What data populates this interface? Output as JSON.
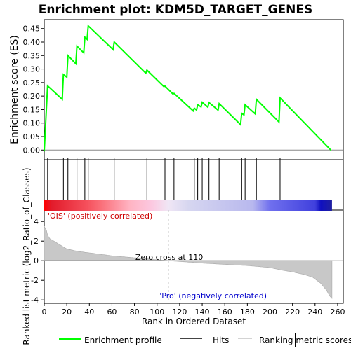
{
  "chart_data": {
    "type": "line",
    "title": "Enrichment plot: KDM5D_TARGET_GENES",
    "top_panel": {
      "ylabel": "Enrichment score (ES)",
      "ylim": [
        -0.02,
        0.47
      ],
      "yticks": [
        0.0,
        0.05,
        0.1,
        0.15,
        0.2,
        0.25,
        0.3,
        0.35,
        0.4,
        0.45
      ],
      "ytick_labels": [
        "0.00",
        "0.05",
        "0.10",
        "0.15",
        "0.20",
        "0.25",
        "0.30",
        "0.35",
        "0.40",
        "0.45"
      ],
      "color": "#00ff00",
      "es_profile": [
        [
          0,
          -0.005
        ],
        [
          3,
          0.238
        ],
        [
          16,
          0.188
        ],
        [
          17,
          0.28
        ],
        [
          20,
          0.27
        ],
        [
          21,
          0.35
        ],
        [
          28,
          0.32
        ],
        [
          29,
          0.385
        ],
        [
          35,
          0.36
        ],
        [
          36,
          0.418
        ],
        [
          38,
          0.41
        ],
        [
          39,
          0.46
        ],
        [
          61,
          0.372
        ],
        [
          62,
          0.4
        ],
        [
          90,
          0.285
        ],
        [
          91,
          0.296
        ],
        [
          106,
          0.235
        ],
        [
          107,
          0.237
        ],
        [
          114,
          0.208
        ],
        [
          115,
          0.21
        ],
        [
          132,
          0.145
        ],
        [
          133,
          0.155
        ],
        [
          135,
          0.148
        ],
        [
          136,
          0.168
        ],
        [
          139,
          0.16
        ],
        [
          140,
          0.177
        ],
        [
          145,
          0.159
        ],
        [
          146,
          0.176
        ],
        [
          154,
          0.148
        ],
        [
          155,
          0.172
        ],
        [
          174,
          0.094
        ],
        [
          175,
          0.136
        ],
        [
          177,
          0.13
        ],
        [
          178,
          0.168
        ],
        [
          187,
          0.134
        ],
        [
          188,
          0.188
        ],
        [
          208,
          0.104
        ],
        [
          209,
          0.193
        ],
        [
          254,
          0.0
        ]
      ]
    },
    "hits_panel": {
      "hit_ranks": [
        3,
        17,
        21,
        29,
        36,
        39,
        62,
        91,
        107,
        115,
        133,
        136,
        140,
        146,
        155,
        175,
        178,
        188,
        209
      ]
    },
    "color_bar": {
      "range": [
        0,
        255
      ],
      "stops": [
        [
          0,
          "#ff0000"
        ],
        [
          6,
          "#e21a2a"
        ],
        [
          38,
          "#f5505c"
        ],
        [
          50,
          "#fa6e78"
        ],
        [
          76,
          "#ffb4c3"
        ],
        [
          95,
          "#fcc8e0"
        ],
        [
          110,
          "#f0e6f5"
        ],
        [
          128,
          "#d6d6f0"
        ],
        [
          185,
          "#b8b8ee"
        ],
        [
          200,
          "#7070ee"
        ],
        [
          240,
          "#4040dd"
        ],
        [
          245,
          "#1010c0"
        ],
        [
          255,
          "#2020a0"
        ]
      ],
      "pos_label": "'OIS' (positively correlated)",
      "neg_label": "'Pro' (negatively correlated)"
    },
    "bottom_panel": {
      "ylabel": "Ranked list metric (log2_Ratio_of_Classes)",
      "ylim": [
        -4.2,
        4.8
      ],
      "yticks": [
        -4,
        -2,
        0,
        2,
        4
      ],
      "ytick_labels": [
        "-4",
        "-2",
        "0",
        "2",
        "4"
      ],
      "zero_cross_label": "Zero cross at 110",
      "zero_cross_rank": 110,
      "metric_profile": [
        [
          0,
          3.5
        ],
        [
          1,
          3.3
        ],
        [
          2,
          3.1
        ],
        [
          3,
          2.6
        ],
        [
          5,
          2.25
        ],
        [
          10,
          1.9
        ],
        [
          15,
          1.55
        ],
        [
          20,
          1.2
        ],
        [
          30,
          0.95
        ],
        [
          40,
          0.8
        ],
        [
          50,
          0.65
        ],
        [
          60,
          0.5
        ],
        [
          70,
          0.4
        ],
        [
          80,
          0.3
        ],
        [
          90,
          0.2
        ],
        [
          100,
          0.1
        ],
        [
          110,
          0.0
        ],
        [
          120,
          -0.08
        ],
        [
          140,
          -0.25
        ],
        [
          160,
          -0.38
        ],
        [
          180,
          -0.5
        ],
        [
          200,
          -0.7
        ],
        [
          210,
          -0.95
        ],
        [
          220,
          -1.15
        ],
        [
          230,
          -1.4
        ],
        [
          238,
          -1.7
        ],
        [
          245,
          -2.3
        ],
        [
          250,
          -3.0
        ],
        [
          253,
          -3.6
        ],
        [
          255,
          -3.85
        ]
      ]
    },
    "xaxis": {
      "xlabel": "Rank in Ordered Dataset",
      "xlim": [
        0,
        265
      ],
      "xticks": [
        0,
        20,
        40,
        60,
        80,
        100,
        120,
        140,
        160,
        180,
        200,
        220,
        240,
        260
      ],
      "xtick_labels": [
        "0",
        "20",
        "40",
        "60",
        "80",
        "100",
        "120",
        "140",
        "160",
        "180",
        "200",
        "220",
        "240",
        "260"
      ]
    },
    "legend": {
      "placement": "bottom",
      "entries": [
        {
          "label": "Enrichment profile",
          "color": "#00ff00"
        },
        {
          "label": "Hits",
          "color": "#000000"
        },
        {
          "label": "Ranking metric scores",
          "color": "#d3d3d3"
        }
      ]
    }
  }
}
